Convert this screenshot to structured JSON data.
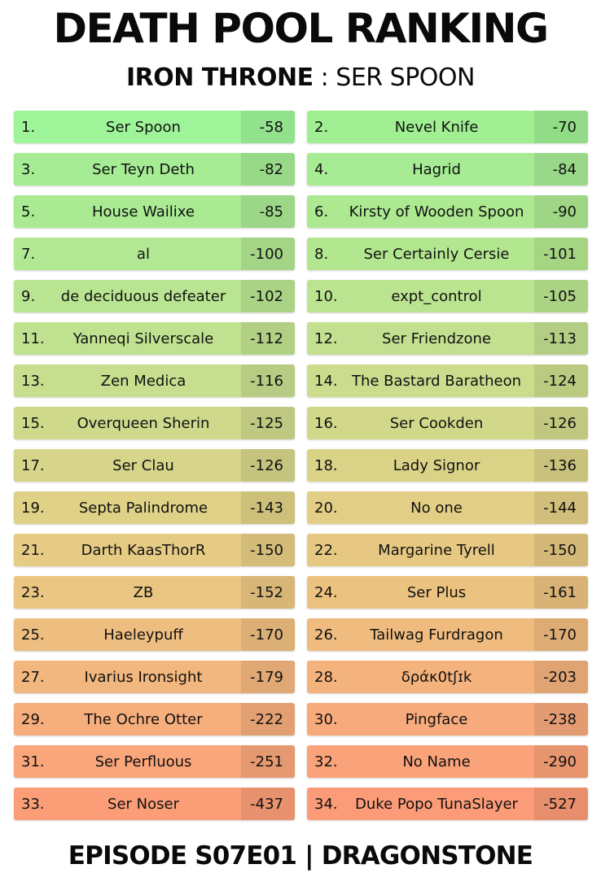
{
  "title": "DEATH POOL RANKING",
  "subtitle": {
    "league": "IRON THRONE",
    "separator": " : ",
    "winner": "SER SPOON"
  },
  "footer": "EPISODE S07E01 | DRAGONSTONE",
  "rankings": [
    {
      "rank": "1.",
      "name": "Ser Spoon",
      "score": "-58",
      "color": "#9ef599"
    },
    {
      "rank": "2.",
      "name": "Nevel Knife",
      "score": "-70",
      "color": "#a0ef93"
    },
    {
      "rank": "3.",
      "name": "Ser Teyn Deth",
      "score": "-82",
      "color": "#a5ec94"
    },
    {
      "rank": "4.",
      "name": "Hagrid",
      "score": "-84",
      "color": "#a7eb94"
    },
    {
      "rank": "5.",
      "name": "House Wailixe",
      "score": "-85",
      "color": "#aaea93"
    },
    {
      "rank": "6.",
      "name": "Kirsty of Wooden Spoon",
      "score": "-90",
      "color": "#ace991"
    },
    {
      "rank": "7.",
      "name": "al",
      "score": "-100",
      "color": "#b2e893"
    },
    {
      "rank": "8.",
      "name": "Ser Certainly Cersie",
      "score": "-101",
      "color": "#b3e78f"
    },
    {
      "rank": "9.",
      "name": "de deciduous defeater",
      "score": "-102",
      "color": "#b9e592"
    },
    {
      "rank": "10.",
      "name": "expt_control",
      "score": "-105",
      "color": "#bbe490"
    },
    {
      "rank": "11.",
      "name": "Yanneqi Silverscale",
      "score": "-112",
      "color": "#c0e290"
    },
    {
      "rank": "12.",
      "name": "Ser Friendzone",
      "score": "-113",
      "color": "#c3e090"
    },
    {
      "rank": "13.",
      "name": "Zen Medica",
      "score": "-116",
      "color": "#c7de8e"
    },
    {
      "rank": "14.",
      "name": "The Bastard Baratheon",
      "score": "-124",
      "color": "#cbdc8d"
    },
    {
      "rank": "15.",
      "name": "Overqueen Sherin",
      "score": "-125",
      "color": "#cfd98b"
    },
    {
      "rank": "16.",
      "name": "Ser Cookden",
      "score": "-126",
      "color": "#d2d88a"
    },
    {
      "rank": "17.",
      "name": "Ser Clau",
      "score": "-126",
      "color": "#d6d589"
    },
    {
      "rank": "18.",
      "name": "Lady Signor",
      "score": "-136",
      "color": "#dad387"
    },
    {
      "rank": "19.",
      "name": "Septa Palindrome",
      "score": "-143",
      "color": "#dfd186"
    },
    {
      "rank": "20.",
      "name": "No one",
      "score": "-144",
      "color": "#e2cf85"
    },
    {
      "rank": "21.",
      "name": "Darth KaasThorR",
      "score": "-150",
      "color": "#e5cb84"
    },
    {
      "rank": "22.",
      "name": "Margarine Tyrell",
      "score": "-150",
      "color": "#e7c882"
    },
    {
      "rank": "23.",
      "name": "ZB",
      "score": "-152",
      "color": "#eac682"
    },
    {
      "rank": "24.",
      "name": "Ser Plus",
      "score": "-161",
      "color": "#ecc280"
    },
    {
      "rank": "25.",
      "name": "Haeleypuff",
      "score": "-170",
      "color": "#eebe80"
    },
    {
      "rank": "26.",
      "name": "Tailwag Furdragon",
      "score": "-170",
      "color": "#f0bb7f"
    },
    {
      "rank": "27.",
      "name": "Ivarius Ironsight",
      "score": "-179",
      "color": "#f2b77e"
    },
    {
      "rank": "28.",
      "name": "δράκ0tʃɪk",
      "score": "-203",
      "color": "#f4b27c"
    },
    {
      "rank": "29.",
      "name": "The Ochre Otter",
      "score": "-222",
      "color": "#f6ae7c"
    },
    {
      "rank": "30.",
      "name": "Pingface",
      "score": "-238",
      "color": "#f7aa7b"
    },
    {
      "rank": "31.",
      "name": "Ser Perfluous",
      "score": "-251",
      "color": "#f9a67a"
    },
    {
      "rank": "32.",
      "name": "No Name",
      "score": "-290",
      "color": "#faa279"
    },
    {
      "rank": "33.",
      "name": "Ser Noser",
      "score": "-437",
      "color": "#fb9e78"
    },
    {
      "rank": "34.",
      "name": "Duke Popo TunaSlayer",
      "score": "-527",
      "color": "#fb9b77"
    }
  ]
}
